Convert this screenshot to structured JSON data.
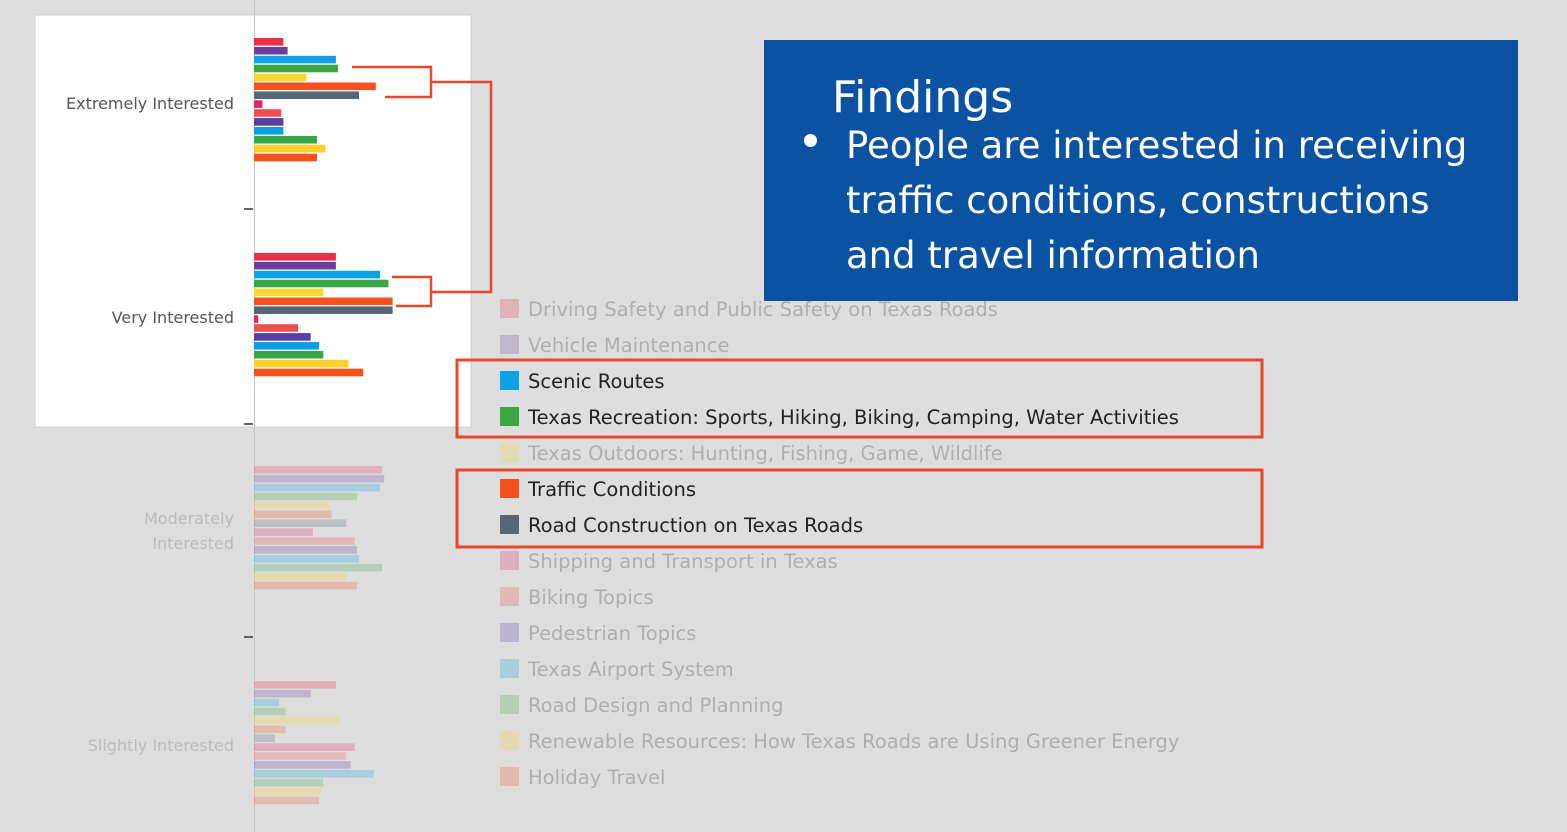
{
  "findings": {
    "title": "Findings",
    "bullet": "People are interested in receiving traffic conditions, constructions and travel information"
  },
  "colors": {
    "background": "#dedede",
    "findings_box": "#0b52a3",
    "highlight_box": "#e8472c"
  },
  "chart_data": {
    "type": "bar",
    "orientation": "horizontal",
    "title": "",
    "xlabel": "",
    "ylabel": "",
    "categories": [
      "Extremely Interested",
      "Very Interested",
      "Moderately Interested",
      "Slightly Interested"
    ],
    "category_labels": [
      "Extremely Interested",
      "Very Interested",
      "Moderately\nInterested",
      "Slightly Interested"
    ],
    "highlighted_categories": [
      "Extremely Interested",
      "Very Interested"
    ],
    "highlighted_series": [
      "Scenic Routes",
      "Texas Recreation: Sports, Hiking, Biking, Camping, Water Activities",
      "Traffic Conditions",
      "Road Construction on Texas Roads"
    ],
    "series": [
      {
        "name": "Driving Safety and Public Safety on Texas Roads",
        "color": "#e8304a",
        "values": [
          14,
          39,
          61,
          39
        ]
      },
      {
        "name": "Vehicle Maintenance",
        "color": "#6b3fa0",
        "values": [
          16,
          39,
          62,
          27
        ]
      },
      {
        "name": "Scenic Routes",
        "color": "#0ea1e3",
        "values": [
          39,
          60,
          60,
          12
        ]
      },
      {
        "name": "Texas Recreation: Sports, Hiking, Biking, Camping, Water Activities",
        "color": "#3ea544",
        "values": [
          40,
          64,
          49,
          15
        ]
      },
      {
        "name": "Texas Outdoors: Hunting, Fishing, Game, Wildlife",
        "color": "#f7d830",
        "values": [
          25,
          33,
          36,
          41
        ]
      },
      {
        "name": "Traffic Conditions",
        "color": "#f4511e",
        "values": [
          58,
          66,
          37,
          15
        ]
      },
      {
        "name": "Road Construction on Texas Roads",
        "color": "#556775",
        "values": [
          50,
          66,
          44,
          10
        ]
      },
      {
        "name": "Shipping and Transport in Texas",
        "color": "#e0245e",
        "values": [
          4,
          2,
          28,
          48
        ]
      },
      {
        "name": "Biking Topics",
        "color": "#f04e4e",
        "values": [
          13,
          21,
          48,
          44
        ]
      },
      {
        "name": "Pedestrian Topics",
        "color": "#5b3da8",
        "values": [
          14,
          27,
          49,
          46
        ]
      },
      {
        "name": "Texas Airport System",
        "color": "#0b9fe0",
        "values": [
          14,
          31,
          50,
          57
        ]
      },
      {
        "name": "Road Design and Planning",
        "color": "#3aa548",
        "values": [
          30,
          33,
          61,
          33
        ]
      },
      {
        "name": "Renewable Resources: How Texas Roads are Using Greener Energy",
        "color": "#ffd02c",
        "values": [
          34,
          45,
          44,
          32
        ]
      },
      {
        "name": "Holiday Travel",
        "color": "#f4511e",
        "values": [
          30,
          52,
          49,
          31
        ]
      }
    ]
  }
}
